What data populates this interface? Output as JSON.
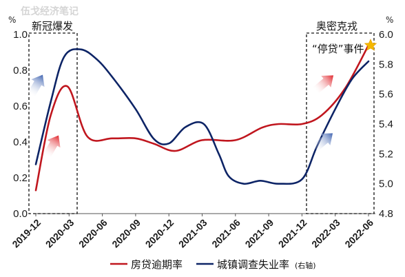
{
  "watermark": "伍戈经济笔记",
  "chart_data": {
    "type": "line",
    "x_categories": [
      "2019-12",
      "2020-03",
      "2020-06",
      "2020-09",
      "2020-12",
      "2021-03",
      "2021-06",
      "2021-09",
      "2021-12",
      "2022-03",
      "2022-06"
    ],
    "y_left": {
      "unit": "%",
      "ticks": [
        "0.0",
        "0.2",
        "0.4",
        "0.6",
        "0.8",
        "1.0"
      ],
      "range": [
        0,
        1.0
      ]
    },
    "y_right": {
      "unit": "%",
      "ticks": [
        "4.8",
        "5.0",
        "5.2",
        "5.4",
        "5.6",
        "5.8",
        "6.0"
      ],
      "range": [
        4.8,
        6.0
      ]
    },
    "series": [
      {
        "name": "房贷逾期率",
        "axis": "left",
        "color": "#c0161e",
        "points": [
          [
            0,
            0.13
          ],
          [
            0.45,
            0.55
          ],
          [
            0.95,
            0.71
          ],
          [
            1.55,
            0.43
          ],
          [
            2.3,
            0.42
          ],
          [
            3,
            0.42
          ],
          [
            3.55,
            0.39
          ],
          [
            4.2,
            0.35
          ],
          [
            5,
            0.41
          ],
          [
            6,
            0.41
          ],
          [
            6.8,
            0.48
          ],
          [
            7.3,
            0.5
          ],
          [
            8,
            0.5
          ],
          [
            8.6,
            0.55
          ],
          [
            9.3,
            0.7
          ],
          [
            10,
            0.94
          ]
        ]
      },
      {
        "name": "城镇调查失业率",
        "axis": "right",
        "color": "#0d2466",
        "points": [
          [
            0,
            5.13
          ],
          [
            0.45,
            5.55
          ],
          [
            0.85,
            5.85
          ],
          [
            1.35,
            5.9
          ],
          [
            1.85,
            5.83
          ],
          [
            2.35,
            5.7
          ],
          [
            3,
            5.5
          ],
          [
            3.55,
            5.3
          ],
          [
            4,
            5.27
          ],
          [
            4.5,
            5.38
          ],
          [
            5.05,
            5.4
          ],
          [
            5.5,
            5.2
          ],
          [
            5.8,
            5.05
          ],
          [
            6.25,
            5.0
          ],
          [
            6.75,
            5.02
          ],
          [
            7.3,
            5.0
          ],
          [
            8,
            5.03
          ],
          [
            8.45,
            5.25
          ],
          [
            9.0,
            5.5
          ],
          [
            9.5,
            5.7
          ],
          [
            10,
            5.82
          ]
        ]
      }
    ],
    "legend": [
      {
        "label": "房贷逾期率",
        "note": ""
      },
      {
        "label": "城镇调查失业率",
        "note": "(右轴)"
      }
    ],
    "annotations": {
      "box1_label": "新冠爆发",
      "box2_label": "奥密克戎",
      "star_label": "“停贷”事件"
    }
  }
}
